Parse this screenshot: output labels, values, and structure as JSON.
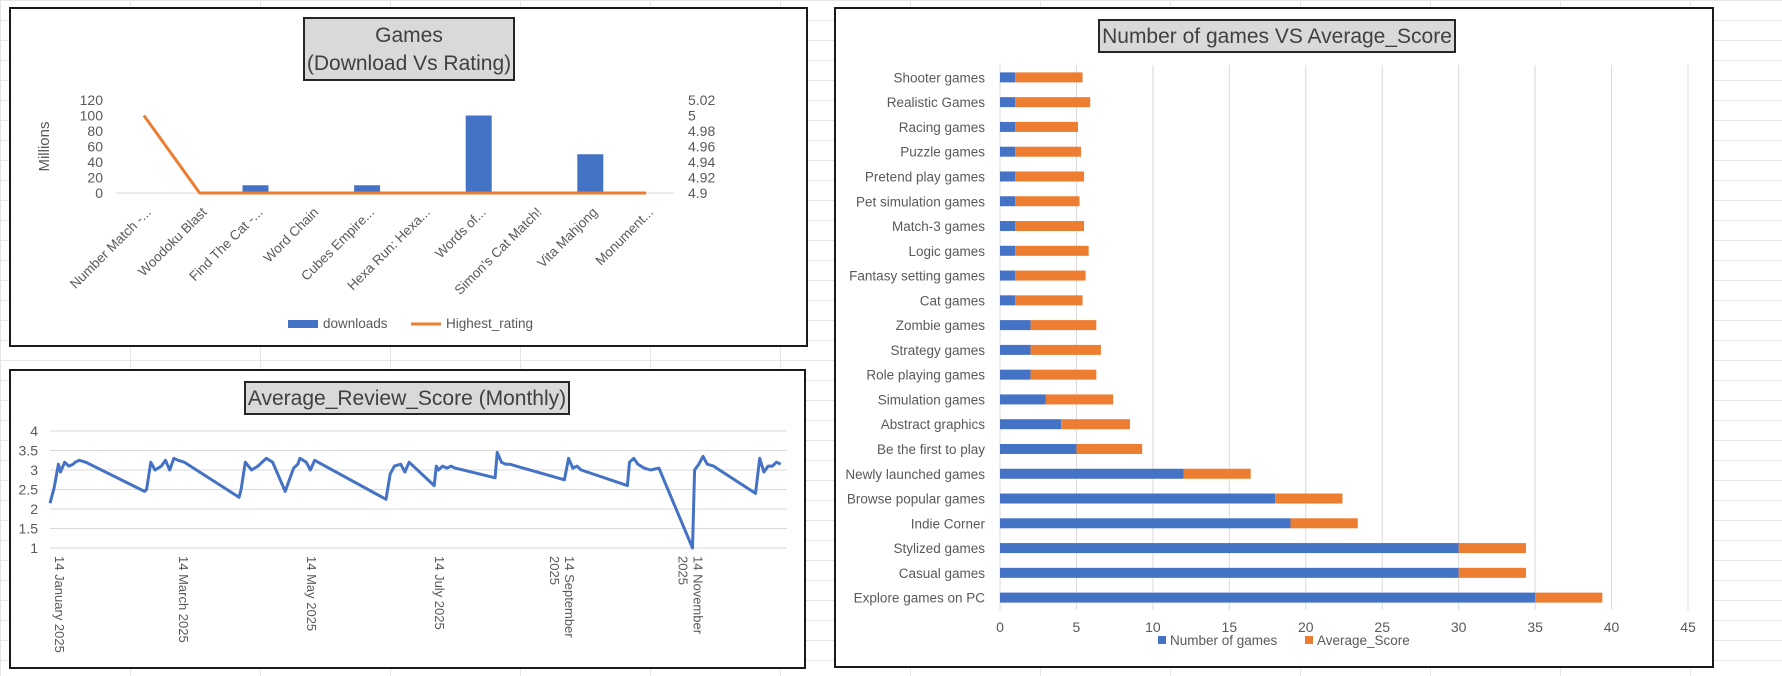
{
  "chart_data": [
    {
      "type": "bar+line",
      "title": "Games",
      "subtitle": "(Download Vs Rating)",
      "ylabel": "Millions",
      "categories": [
        "Number Match -...",
        "Woodoku Blast",
        "Find The Cat -...",
        "Word Chain",
        "Cubes Empire...",
        "Hexa Run: Hexa...",
        "Words of...",
        "Simon's Cat Match!",
        "Vita Mahjong",
        "Monument..."
      ],
      "series": [
        {
          "name": "downloads",
          "kind": "bar",
          "axis": "left",
          "color": "#4472c4",
          "values": [
            0,
            0,
            10,
            0,
            10,
            0,
            100,
            0,
            50,
            0
          ]
        },
        {
          "name": "Highest_rating",
          "kind": "line",
          "axis": "right",
          "color": "#ed7d31",
          "values": [
            5.0,
            4.9,
            4.9,
            4.9,
            4.9,
            4.9,
            4.9,
            4.9,
            4.9,
            4.9
          ]
        }
      ],
      "ylim_left": [
        0,
        120
      ],
      "yticks_left": [
        "120",
        "100",
        "80",
        "60",
        "40",
        "20",
        "0"
      ],
      "ylim_right": [
        4.9,
        5.02
      ],
      "yticks_right": [
        "5.02",
        "5",
        "4.98",
        "4.96",
        "4.94",
        "4.92",
        "4.9"
      ],
      "legend_position": "bottom",
      "grid": false
    },
    {
      "type": "line",
      "title": "Average_Review_Score (Monthly)",
      "x_ticks": [
        "14 January 2025",
        "14 March 2025",
        "14 May 2025",
        "14 July 2025",
        "14 September 2025",
        "14 November 2025"
      ],
      "ylim": [
        1,
        4
      ],
      "yticks": [
        "4",
        "3.5",
        "3",
        "2.5",
        "2",
        "1.5",
        "1"
      ],
      "color": "#4472c4",
      "grid": true,
      "series": [
        {
          "x": [
            "2025-01-14",
            "2025-01-16",
            "2025-01-18",
            "2025-01-19",
            "2025-01-21",
            "2025-01-23",
            "2025-01-25",
            "2025-01-26",
            "2025-01-28",
            "2025-01-31",
            "2025-02-28",
            "2025-03-01",
            "2025-03-03",
            "2025-03-05",
            "2025-03-08",
            "2025-03-10",
            "2025-03-12",
            "2025-03-14",
            "2025-03-16",
            "2025-03-19",
            "2025-04-14",
            "2025-04-15",
            "2025-04-17",
            "2025-04-20",
            "2025-04-23",
            "2025-04-27",
            "2025-04-30",
            "2025-05-06",
            "2025-05-08",
            "2025-05-10",
            "2025-05-12",
            "2025-05-13",
            "2025-05-16",
            "2025-05-18",
            "2025-05-20",
            "2025-06-23",
            "2025-06-25",
            "2025-06-27",
            "2025-06-30",
            "2025-07-02",
            "2025-07-04",
            "2025-07-16",
            "2025-07-17",
            "2025-07-18",
            "2025-07-20",
            "2025-07-22",
            "2025-07-24",
            "2025-07-26",
            "2025-08-14",
            "2025-08-15",
            "2025-08-17",
            "2025-08-19",
            "2025-08-21",
            "2025-08-24",
            "2025-09-16",
            "2025-09-18",
            "2025-09-20",
            "2025-09-22",
            "2025-09-24",
            "2025-10-16",
            "2025-10-17",
            "2025-10-19",
            "2025-10-21",
            "2025-10-24",
            "2025-10-27",
            "2025-10-31",
            "2025-11-16",
            "2025-11-17",
            "2025-11-19",
            "2025-11-21",
            "2025-11-23",
            "2025-11-26",
            "2025-12-16",
            "2025-12-18",
            "2025-12-20",
            "2025-12-22",
            "2025-12-24",
            "2025-12-26",
            "2025-12-28"
          ],
          "y": [
            2.15,
            2.55,
            3.15,
            2.95,
            3.2,
            3.1,
            3.15,
            3.2,
            3.25,
            3.2,
            2.45,
            2.5,
            3.2,
            3.0,
            3.1,
            3.25,
            3.0,
            3.3,
            3.25,
            3.2,
            2.3,
            2.5,
            3.2,
            3.0,
            3.1,
            3.3,
            3.2,
            2.45,
            2.75,
            3.05,
            3.15,
            3.3,
            3.2,
            3.0,
            3.25,
            2.25,
            2.9,
            3.1,
            3.15,
            2.95,
            3.2,
            2.6,
            3.1,
            3.0,
            3.1,
            3.05,
            3.1,
            3.05,
            2.8,
            3.45,
            3.2,
            3.15,
            3.15,
            3.1,
            2.75,
            3.3,
            3.05,
            3.1,
            3.0,
            2.6,
            3.2,
            3.3,
            3.15,
            3.05,
            3.0,
            3.05,
            1.0,
            3.0,
            3.15,
            3.35,
            3.15,
            3.1,
            2.4,
            3.3,
            2.95,
            3.1,
            3.1,
            3.2,
            3.15
          ]
        }
      ]
    },
    {
      "type": "bar",
      "orientation": "horizontal",
      "stacked": true,
      "title": "Number of games VS Average_Score",
      "categories": [
        "Shooter games",
        "Realistic Games",
        "Racing games",
        "Puzzle games",
        "Pretend play games",
        "Pet simulation games",
        "Match-3 games",
        "Logic games",
        "Fantasy setting games",
        "Cat games",
        "Zombie games",
        "Strategy games",
        "Role playing games",
        "Simulation games",
        "Abstract graphics",
        "Be the first to play",
        "Newly launched games",
        "Browse popular games",
        "Indie Corner",
        "Stylized games",
        "Casual games",
        "Explore games on PC"
      ],
      "series": [
        {
          "name": "Number of games",
          "color": "#4472c4",
          "values": [
            1,
            1,
            1,
            1,
            1,
            1,
            1,
            1,
            1,
            1,
            2,
            2,
            2,
            3,
            4,
            5,
            12,
            18,
            19,
            30,
            30,
            35
          ]
        },
        {
          "name": "Average_Score",
          "color": "#ed7d31",
          "values": [
            4.4,
            4.9,
            4.1,
            4.3,
            4.5,
            4.2,
            4.5,
            4.8,
            4.6,
            4.4,
            4.3,
            4.6,
            4.3,
            4.4,
            4.5,
            4.3,
            4.4,
            4.4,
            4.4,
            4.4,
            4.4,
            4.4
          ]
        }
      ],
      "xlim": [
        0,
        45
      ],
      "xticks": [
        "0",
        "5",
        "10",
        "15",
        "20",
        "25",
        "30",
        "35",
        "40",
        "45"
      ],
      "grid": true,
      "legend_position": "bottom"
    }
  ]
}
